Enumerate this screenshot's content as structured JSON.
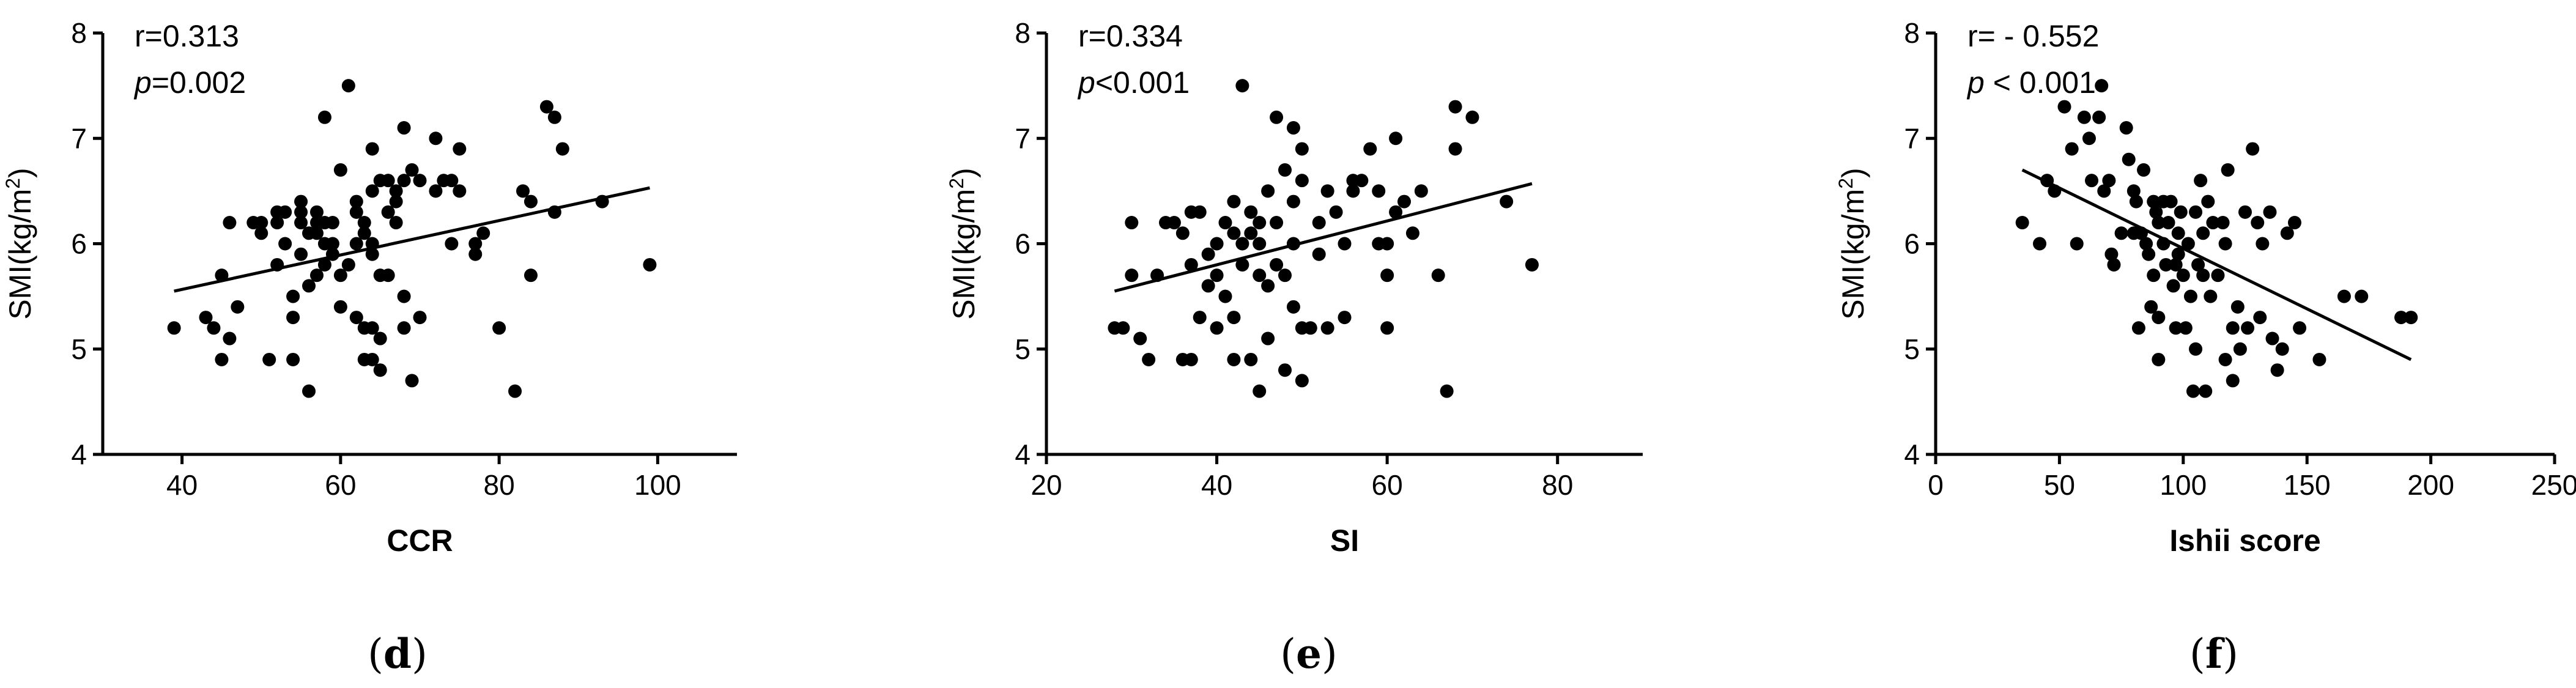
{
  "chart_data": [
    {
      "type": "scatter",
      "panel_label": "d",
      "xlabel": "CCR",
      "ylabel": "SMI(kg/m",
      "ylabel_sup": "2",
      "ylabel_close": ")",
      "stats": [
        {
          "prefix": "r",
          "rest": "=0.313"
        },
        {
          "prefix": "p",
          "rest": "=0.002"
        }
      ],
      "xlim": [
        30,
        110
      ],
      "ylim": [
        4,
        8
      ],
      "xticks": [
        40,
        60,
        80,
        100
      ],
      "yticks": [
        4,
        5,
        6,
        7,
        8
      ],
      "grid": false,
      "fit_line": [
        [
          39,
          5.55
        ],
        [
          99,
          6.53
        ]
      ],
      "points": [
        [
          39,
          5.2
        ],
        [
          43,
          5.3
        ],
        [
          44,
          5.2
        ],
        [
          45,
          5.7
        ],
        [
          45,
          4.9
        ],
        [
          46,
          6.2
        ],
        [
          46,
          5.1
        ],
        [
          47,
          5.4
        ],
        [
          49,
          6.2
        ],
        [
          50,
          6.1
        ],
        [
          50,
          6.2
        ],
        [
          51,
          4.9
        ],
        [
          52,
          5.8
        ],
        [
          52,
          6.3
        ],
        [
          52,
          6.2
        ],
        [
          53,
          6.3
        ],
        [
          53,
          6.0
        ],
        [
          54,
          5.5
        ],
        [
          54,
          5.3
        ],
        [
          54,
          4.9
        ],
        [
          55,
          6.4
        ],
        [
          55,
          6.3
        ],
        [
          55,
          6.2
        ],
        [
          55,
          5.9
        ],
        [
          56,
          4.6
        ],
        [
          56,
          6.1
        ],
        [
          56,
          5.6
        ],
        [
          57,
          6.2
        ],
        [
          57,
          6.1
        ],
        [
          57,
          6.3
        ],
        [
          57,
          5.7
        ],
        [
          58,
          7.2
        ],
        [
          58,
          6.2
        ],
        [
          58,
          6.0
        ],
        [
          58,
          5.8
        ],
        [
          59,
          6.2
        ],
        [
          59,
          6.0
        ],
        [
          59,
          5.9
        ],
        [
          60,
          6.7
        ],
        [
          60,
          5.4
        ],
        [
          60,
          5.7
        ],
        [
          61,
          7.5
        ],
        [
          61,
          5.8
        ],
        [
          62,
          6.4
        ],
        [
          62,
          6.3
        ],
        [
          62,
          6.0
        ],
        [
          62,
          5.3
        ],
        [
          63,
          6.2
        ],
        [
          63,
          6.1
        ],
        [
          63,
          4.9
        ],
        [
          63,
          5.2
        ],
        [
          64,
          6.9
        ],
        [
          64,
          6.5
        ],
        [
          64,
          6.0
        ],
        [
          64,
          5.9
        ],
        [
          64,
          5.2
        ],
        [
          64,
          4.9
        ],
        [
          65,
          6.6
        ],
        [
          65,
          5.7
        ],
        [
          65,
          5.1
        ],
        [
          65,
          4.8
        ],
        [
          66,
          6.6
        ],
        [
          66,
          6.3
        ],
        [
          66,
          5.7
        ],
        [
          67,
          6.5
        ],
        [
          67,
          6.4
        ],
        [
          67,
          6.2
        ],
        [
          68,
          7.1
        ],
        [
          68,
          6.6
        ],
        [
          68,
          5.5
        ],
        [
          68,
          5.2
        ],
        [
          69,
          6.7
        ],
        [
          69,
          4.7
        ],
        [
          70,
          6.6
        ],
        [
          70,
          5.3
        ],
        [
          72,
          6.5
        ],
        [
          72,
          7.0
        ],
        [
          73,
          6.6
        ],
        [
          74,
          6.0
        ],
        [
          74,
          6.6
        ],
        [
          75,
          6.9
        ],
        [
          75,
          6.5
        ],
        [
          77,
          6.0
        ],
        [
          77,
          5.9
        ],
        [
          78,
          6.1
        ],
        [
          80,
          5.2
        ],
        [
          82,
          4.6
        ],
        [
          83,
          6.5
        ],
        [
          84,
          6.4
        ],
        [
          84,
          5.7
        ],
        [
          86,
          7.3
        ],
        [
          87,
          7.2
        ],
        [
          87,
          6.3
        ],
        [
          88,
          6.9
        ],
        [
          93,
          6.4
        ],
        [
          99,
          5.8
        ]
      ]
    },
    {
      "type": "scatter",
      "panel_label": "e",
      "xlabel": "SI",
      "ylabel": "SMI(kg/m",
      "ylabel_sup": "2",
      "ylabel_close": ")",
      "stats": [
        {
          "prefix": "r",
          "rest": "=0.334"
        },
        {
          "prefix": "p",
          "rest": "<0.001"
        }
      ],
      "xlim": [
        20,
        90
      ],
      "ylim": [
        4,
        8
      ],
      "xticks": [
        20,
        40,
        60,
        80
      ],
      "yticks": [
        4,
        5,
        6,
        7,
        8
      ],
      "grid": false,
      "fit_line": [
        [
          28,
          5.55
        ],
        [
          77,
          6.57
        ]
      ],
      "points": [
        [
          28,
          5.2
        ],
        [
          29,
          5.2
        ],
        [
          30,
          6.2
        ],
        [
          30,
          5.7
        ],
        [
          31,
          5.1
        ],
        [
          32,
          4.9
        ],
        [
          33,
          5.7
        ],
        [
          34,
          6.2
        ],
        [
          35,
          6.2
        ],
        [
          36,
          6.1
        ],
        [
          36,
          4.9
        ],
        [
          37,
          6.3
        ],
        [
          37,
          5.8
        ],
        [
          37,
          4.9
        ],
        [
          38,
          6.3
        ],
        [
          38,
          5.3
        ],
        [
          39,
          5.9
        ],
        [
          39,
          5.6
        ],
        [
          40,
          6.0
        ],
        [
          40,
          5.2
        ],
        [
          40,
          5.7
        ],
        [
          41,
          6.2
        ],
        [
          41,
          5.5
        ],
        [
          42,
          6.4
        ],
        [
          42,
          6.1
        ],
        [
          42,
          5.3
        ],
        [
          42,
          4.9
        ],
        [
          43,
          7.5
        ],
        [
          43,
          5.8
        ],
        [
          43,
          6.0
        ],
        [
          44,
          6.3
        ],
        [
          44,
          6.1
        ],
        [
          44,
          4.9
        ],
        [
          45,
          6.2
        ],
        [
          45,
          5.7
        ],
        [
          45,
          4.6
        ],
        [
          45,
          6.0
        ],
        [
          46,
          6.5
        ],
        [
          46,
          5.1
        ],
        [
          46,
          5.6
        ],
        [
          47,
          7.2
        ],
        [
          47,
          5.8
        ],
        [
          47,
          6.2
        ],
        [
          48,
          6.7
        ],
        [
          48,
          5.7
        ],
        [
          48,
          4.8
        ],
        [
          49,
          7.1
        ],
        [
          49,
          6.4
        ],
        [
          49,
          5.4
        ],
        [
          49,
          6.0
        ],
        [
          50,
          6.9
        ],
        [
          50,
          6.6
        ],
        [
          50,
          5.2
        ],
        [
          50,
          4.7
        ],
        [
          51,
          5.2
        ],
        [
          52,
          6.2
        ],
        [
          52,
          5.9
        ],
        [
          53,
          6.5
        ],
        [
          53,
          5.2
        ],
        [
          54,
          6.3
        ],
        [
          55,
          6.0
        ],
        [
          55,
          5.3
        ],
        [
          56,
          6.6
        ],
        [
          56,
          6.5
        ],
        [
          57,
          6.6
        ],
        [
          58,
          6.9
        ],
        [
          59,
          6.5
        ],
        [
          59,
          6.0
        ],
        [
          60,
          6.0
        ],
        [
          60,
          5.7
        ],
        [
          60,
          5.2
        ],
        [
          61,
          7.0
        ],
        [
          61,
          6.3
        ],
        [
          62,
          6.4
        ],
        [
          63,
          6.1
        ],
        [
          64,
          6.5
        ],
        [
          66,
          5.7
        ],
        [
          67,
          4.6
        ],
        [
          68,
          7.3
        ],
        [
          68,
          6.9
        ],
        [
          70,
          7.2
        ],
        [
          74,
          6.4
        ],
        [
          77,
          5.8
        ]
      ]
    },
    {
      "type": "scatter",
      "panel_label": "f",
      "xlabel": "Ishii score",
      "ylabel": "SMI(kg/m",
      "ylabel_sup": "2",
      "ylabel_close": ")",
      "stats": [
        {
          "prefix": "r",
          "rest": "= - 0.552"
        },
        {
          "prefix": "p",
          "rest": " < 0.001"
        }
      ],
      "xlim": [
        0,
        250
      ],
      "ylim": [
        4,
        8
      ],
      "xticks": [
        0,
        50,
        100,
        150,
        200,
        250
      ],
      "yticks": [
        4,
        5,
        6,
        7,
        8
      ],
      "grid": false,
      "fit_line": [
        [
          35,
          6.7
        ],
        [
          192,
          4.9
        ]
      ],
      "points": [
        [
          35,
          6.2
        ],
        [
          42,
          6.0
        ],
        [
          45,
          6.6
        ],
        [
          48,
          6.5
        ],
        [
          52,
          7.3
        ],
        [
          55,
          6.9
        ],
        [
          57,
          6.0
        ],
        [
          60,
          7.2
        ],
        [
          62,
          7.0
        ],
        [
          63,
          6.6
        ],
        [
          66,
          7.2
        ],
        [
          67,
          7.5
        ],
        [
          68,
          6.5
        ],
        [
          70,
          6.6
        ],
        [
          71,
          5.9
        ],
        [
          72,
          5.8
        ],
        [
          75,
          6.1
        ],
        [
          77,
          7.1
        ],
        [
          78,
          6.8
        ],
        [
          80,
          6.5
        ],
        [
          80,
          6.1
        ],
        [
          81,
          6.4
        ],
        [
          82,
          5.2
        ],
        [
          83,
          6.1
        ],
        [
          84,
          6.7
        ],
        [
          85,
          6.0
        ],
        [
          86,
          5.9
        ],
        [
          87,
          5.4
        ],
        [
          88,
          6.4
        ],
        [
          88,
          5.7
        ],
        [
          89,
          6.3
        ],
        [
          90,
          6.2
        ],
        [
          90,
          5.3
        ],
        [
          90,
          4.9
        ],
        [
          92,
          6.4
        ],
        [
          92,
          6.0
        ],
        [
          93,
          5.8
        ],
        [
          94,
          6.2
        ],
        [
          95,
          6.4
        ],
        [
          96,
          5.6
        ],
        [
          97,
          5.2
        ],
        [
          97,
          5.8
        ],
        [
          98,
          6.1
        ],
        [
          98,
          5.9
        ],
        [
          99,
          6.3
        ],
        [
          100,
          5.7
        ],
        [
          101,
          5.2
        ],
        [
          102,
          6.0
        ],
        [
          103,
          5.5
        ],
        [
          104,
          4.6
        ],
        [
          105,
          6.3
        ],
        [
          105,
          5.0
        ],
        [
          106,
          5.8
        ],
        [
          107,
          6.6
        ],
        [
          108,
          6.1
        ],
        [
          108,
          5.7
        ],
        [
          109,
          4.6
        ],
        [
          110,
          6.4
        ],
        [
          111,
          5.5
        ],
        [
          112,
          6.2
        ],
        [
          114,
          5.7
        ],
        [
          116,
          6.2
        ],
        [
          117,
          4.9
        ],
        [
          117,
          6.0
        ],
        [
          118,
          6.7
        ],
        [
          120,
          5.2
        ],
        [
          120,
          4.7
        ],
        [
          122,
          5.4
        ],
        [
          123,
          5.0
        ],
        [
          125,
          6.3
        ],
        [
          126,
          5.2
        ],
        [
          128,
          6.9
        ],
        [
          130,
          6.2
        ],
        [
          131,
          5.3
        ],
        [
          132,
          6.0
        ],
        [
          135,
          6.3
        ],
        [
          136,
          5.1
        ],
        [
          138,
          4.8
        ],
        [
          140,
          5.0
        ],
        [
          142,
          6.1
        ],
        [
          145,
          6.2
        ],
        [
          147,
          5.2
        ],
        [
          155,
          4.9
        ],
        [
          165,
          5.5
        ],
        [
          172,
          5.5
        ],
        [
          188,
          5.3
        ],
        [
          192,
          5.3
        ]
      ]
    }
  ]
}
